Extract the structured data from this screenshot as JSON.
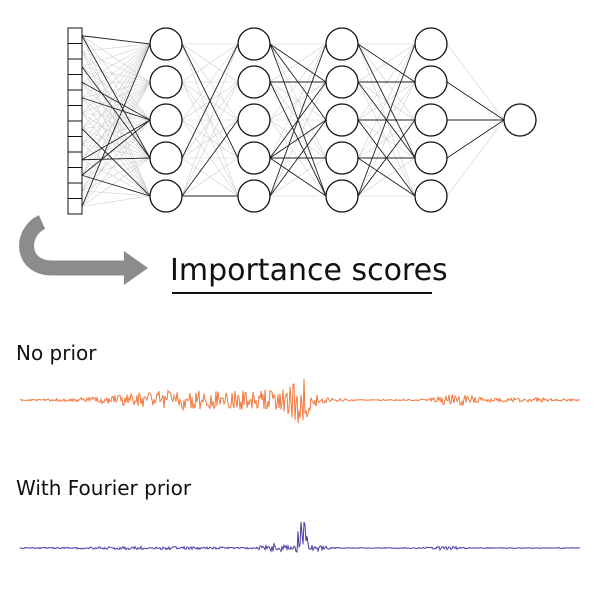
{
  "heading": "Importance scores",
  "panels": [
    {
      "label": "No prior",
      "color": "#f07a40"
    },
    {
      "label": "With Fourier prior",
      "color": "#4a3aa8"
    }
  ],
  "network": {
    "input_cells": 12,
    "hidden_layers": [
      5,
      5,
      5,
      5
    ],
    "output_nodes": 1
  },
  "colors": {
    "node_stroke": "#111111",
    "strong_edge": "#222222",
    "weak_edge": "#cfcfcf",
    "arrow": "#8c8c8c",
    "underline": "#111111"
  }
}
